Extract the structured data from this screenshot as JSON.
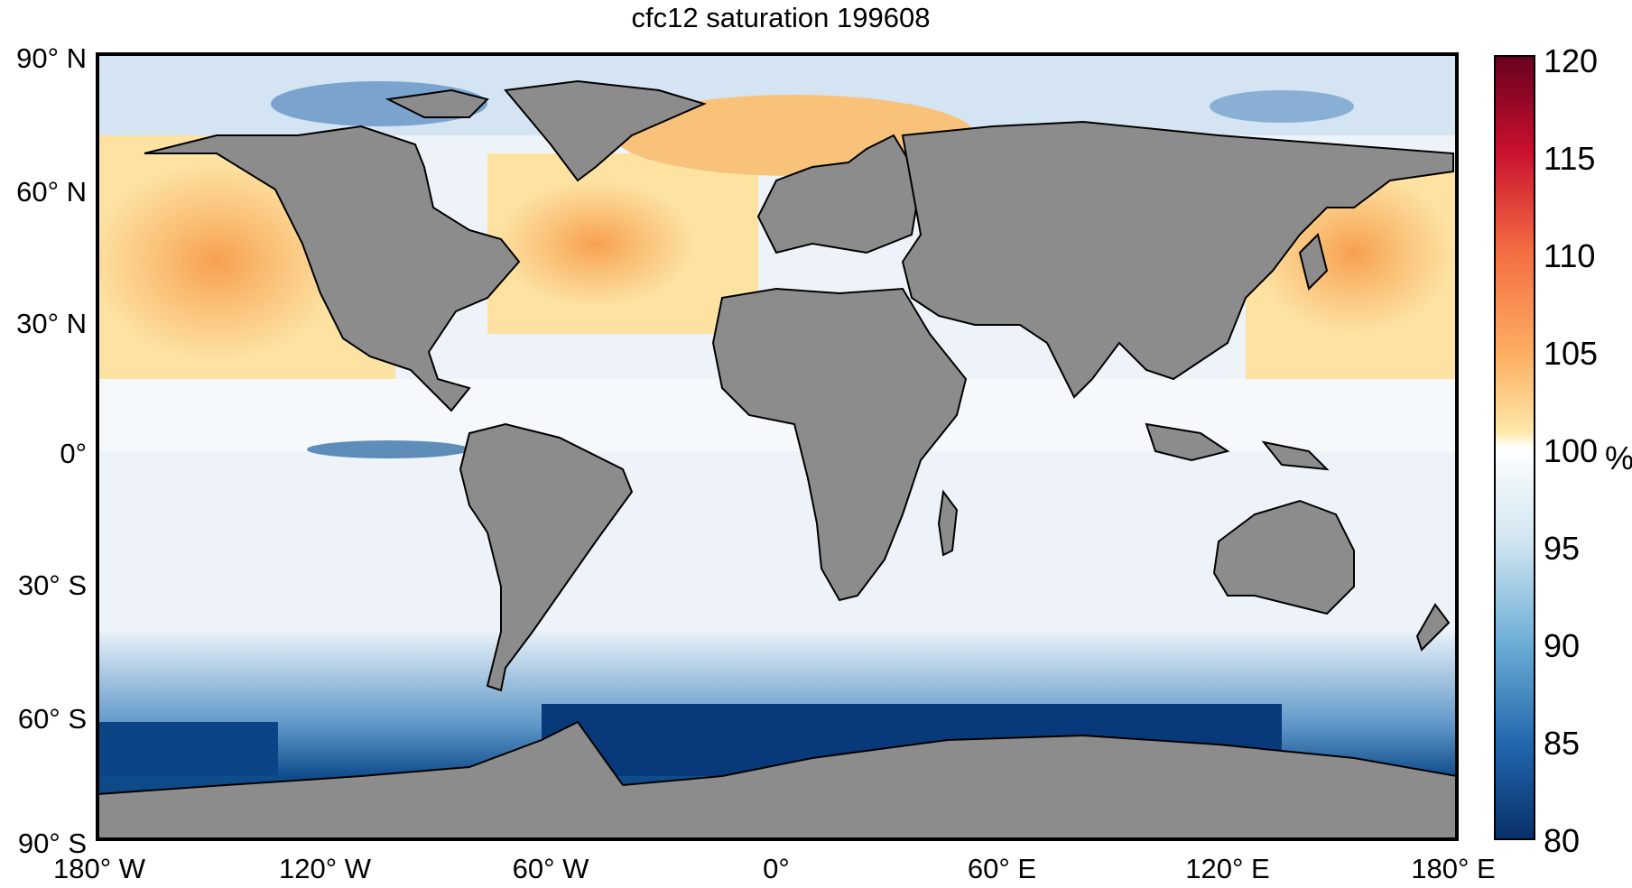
{
  "title": "cfc12 saturation 199608",
  "lat_labels": [
    "90° N",
    "60° N",
    "30° N",
    "0°",
    "30° S",
    "60° S",
    "90° S"
  ],
  "lon_labels": [
    "180° W",
    "120° W",
    "60° W",
    "0°",
    "60° E",
    "120° E",
    "180° E"
  ],
  "colorbar": {
    "ticks": [
      "120",
      "115",
      "110",
      "105",
      "100",
      "95",
      "90",
      "85",
      "80"
    ],
    "unit": "%",
    "min": 80,
    "max": 120
  },
  "colors": {
    "land": "#8c8c8c",
    "coast": "#000000",
    "supersaturated": "#f4a14f",
    "neutral": "#ffffff",
    "undersaturated": "#0b3d7a"
  }
}
